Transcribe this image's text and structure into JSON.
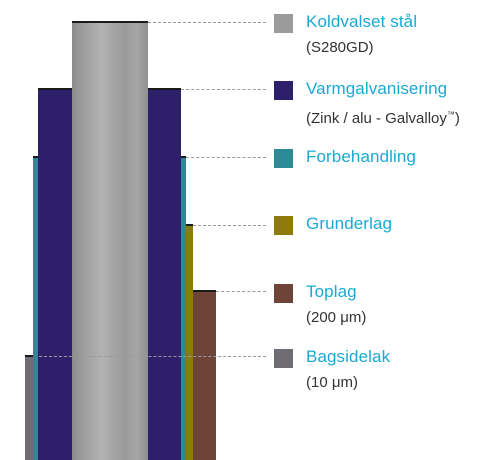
{
  "colors": {
    "label_text": "#1aa9d6",
    "sub_text": "#333333",
    "leader_line": "#9a9a9a"
  },
  "layers": [
    {
      "id": "koldvalset",
      "name": "Koldvalset stål",
      "note": "(S280GD)",
      "color": "#9b9b9b",
      "swatch_color": "#9b9b9b"
    },
    {
      "id": "varmgalvanisering",
      "name": "Varmgalvanisering",
      "note": "(Zink / alu - Galvalloy",
      "note_suffix": "™",
      "note_close": ")",
      "color": "#2e1f6b",
      "swatch_color": "#2e1f6b"
    },
    {
      "id": "forbehandling",
      "name": "Forbehandling",
      "color": "#2a8a96",
      "swatch_color": "#2a8a96"
    },
    {
      "id": "grunderlag",
      "name": "Grunderlag",
      "color": "#8f7a0c",
      "swatch_color": "#8f7a0c"
    },
    {
      "id": "toplag",
      "name": "Toplag",
      "note": "(200 μm)",
      "color": "#6e4438",
      "swatch_color": "#6e4438"
    },
    {
      "id": "bagsidelak",
      "name": "Bagsidelak",
      "note": "(10 μm)",
      "color": "#6f6d73",
      "swatch_color": "#6f6d73"
    }
  ]
}
